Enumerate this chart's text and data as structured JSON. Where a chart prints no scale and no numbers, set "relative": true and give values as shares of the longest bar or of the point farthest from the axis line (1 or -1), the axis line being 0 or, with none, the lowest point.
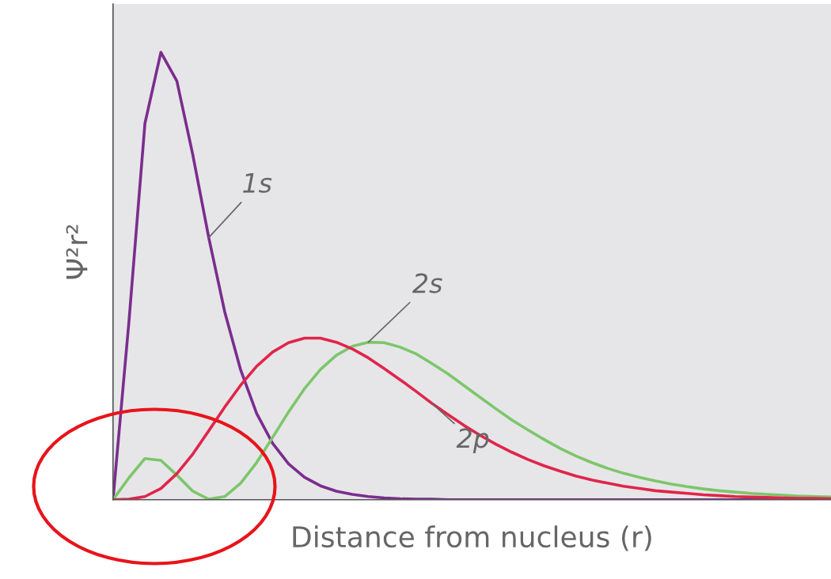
{
  "chart_data": {
    "type": "line",
    "relative": true,
    "xlabel": "Distance from nucleus (r)",
    "ylabel": "Ψ²r²",
    "grid": false,
    "legend": false,
    "marker": "none",
    "line_style": "solid",
    "categories": [
      null,
      null,
      null,
      null,
      null,
      null,
      null,
      null,
      null,
      null,
      null,
      null,
      null,
      null,
      null,
      null,
      null,
      null,
      null,
      null,
      null,
      null,
      null,
      null,
      null,
      null,
      null,
      null,
      null,
      null,
      null,
      null,
      null,
      null,
      null,
      null,
      null,
      null,
      null,
      null,
      null,
      null,
      null,
      null,
      null,
      null
    ],
    "series": [
      {
        "name": "1s",
        "color": "#7b2d8e",
        "values": [
          0,
          0.399,
          0.841,
          1,
          0.936,
          0.771,
          0.586,
          0.42,
          0.29,
          0.193,
          0.126,
          0.08,
          0.05,
          0.031,
          0.019,
          0.012,
          0.007,
          0.004,
          0.002,
          0.001,
          0.001,
          0,
          0,
          0,
          0,
          0,
          0,
          0,
          0,
          0,
          0,
          0,
          0,
          0,
          0,
          0,
          0,
          0,
          0,
          0,
          0,
          0,
          0,
          0,
          0,
          0
        ]
      },
      {
        "name": "2s",
        "color": "#7dc66b",
        "values": [
          0,
          0.049,
          0.092,
          0.088,
          0.055,
          0.019,
          0.001,
          0.007,
          0.037,
          0.083,
          0.139,
          0.196,
          0.248,
          0.291,
          0.323,
          0.343,
          0.352,
          0.351,
          0.341,
          0.326,
          0.304,
          0.281,
          0.255,
          0.229,
          0.203,
          0.178,
          0.156,
          0.135,
          0.115,
          0.098,
          0.083,
          0.07,
          0.059,
          0.05,
          0.042,
          0.035,
          0.029,
          0.024,
          0.02,
          0.017,
          0.014,
          0.012,
          0.01,
          0.008,
          0.007,
          0.006
        ]
      },
      {
        "name": "2p",
        "color": "#e0254b",
        "values": [
          0,
          0.001,
          0.007,
          0.025,
          0.058,
          0.102,
          0.154,
          0.207,
          0.256,
          0.298,
          0.33,
          0.351,
          0.361,
          0.361,
          0.352,
          0.337,
          0.317,
          0.293,
          0.268,
          0.242,
          0.215,
          0.19,
          0.166,
          0.144,
          0.124,
          0.106,
          0.09,
          0.076,
          0.064,
          0.053,
          0.044,
          0.037,
          0.03,
          0.025,
          0.02,
          0.017,
          0.014,
          0.011,
          0.009,
          0.007,
          0.006,
          0.005,
          0.004,
          0.003,
          0.003,
          0.002
        ]
      }
    ]
  }
}
